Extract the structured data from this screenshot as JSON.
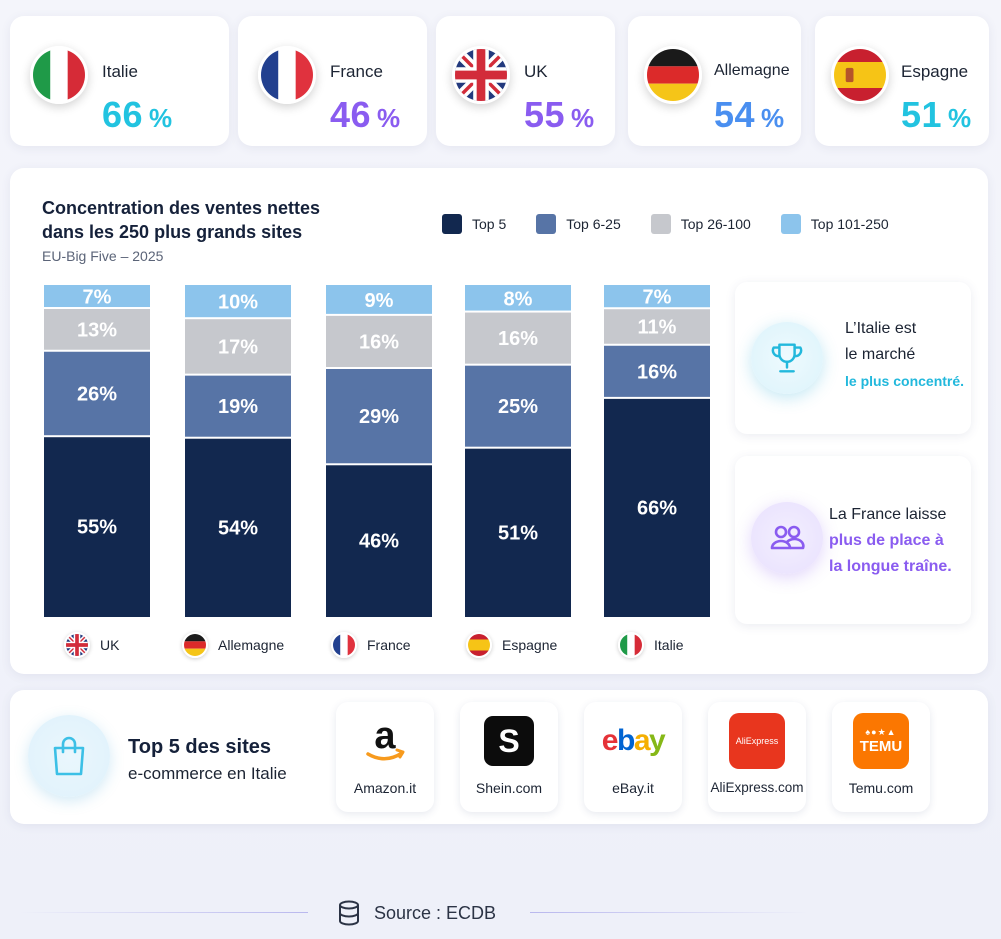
{
  "stats": [
    {
      "country": "Italie",
      "value": "66",
      "unit": "%",
      "color": "#22c3e0"
    },
    {
      "country": "France",
      "value": "46",
      "unit": "%",
      "color": "#8a5cf0"
    },
    {
      "country": "UK",
      "value": "55",
      "unit": "%",
      "color": "#8a5cf0"
    },
    {
      "country": "Allemagne",
      "value": "54",
      "unit": "%",
      "color": "#4a8ff0"
    },
    {
      "country": "Espagne",
      "value": "51",
      "unit": "%",
      "color": "#22c3e0"
    }
  ],
  "chart": {
    "title": "Concentration des ventes nettes dans les 250 plus grands sites",
    "subtitle": "EU-Big Five – 2025"
  },
  "chart_data": {
    "type": "bar",
    "stacked": true,
    "categories": [
      "UK",
      "Allemagne",
      "France",
      "Espagne",
      "Italie"
    ],
    "series": [
      {
        "name": "Top 5",
        "values": [
          55,
          54,
          46,
          51,
          66
        ],
        "color": "#12284f"
      },
      {
        "name": "Top 6-25",
        "values": [
          26,
          19,
          29,
          25,
          16
        ],
        "color": "#5774a6"
      },
      {
        "name": "Top 26-100",
        "values": [
          13,
          17,
          16,
          16,
          11
        ],
        "color": "#c6c8cd"
      },
      {
        "name": "Top 101-250",
        "values": [
          7,
          10,
          9,
          8,
          7
        ],
        "color": "#8cc4ec"
      }
    ],
    "value_suffix": "%",
    "ylim": [
      0,
      100
    ],
    "legend_position": "top-right",
    "grid": false
  },
  "insights": [
    {
      "line1": "L’Italie est",
      "line2": "le marché",
      "highlight": "le plus concentré.",
      "highlight_color": "#22b8dc"
    },
    {
      "line1": "La France laisse",
      "highlight1": "plus de place à",
      "highlight2": "la longue traîne.",
      "highlight_color": "#8a5cf0"
    }
  ],
  "top_sites": {
    "title": "Top 5 des sites",
    "subtitle": "e-commerce en Italie",
    "sites": [
      {
        "name": "Amazon.it",
        "logo": "amazon-logo"
      },
      {
        "name": "Shein.com",
        "logo": "shein-logo",
        "logo_text": "S"
      },
      {
        "name": "eBay.it",
        "logo": "ebay-logo",
        "logo_text": "ebay"
      },
      {
        "name": "AliExpress.com",
        "logo": "aliexpress-logo",
        "logo_text": "AliExpress"
      },
      {
        "name": "Temu.com",
        "logo": "temu-logo",
        "logo_text": "TEMU"
      }
    ]
  },
  "footer": {
    "source": "Source : ECDB"
  }
}
